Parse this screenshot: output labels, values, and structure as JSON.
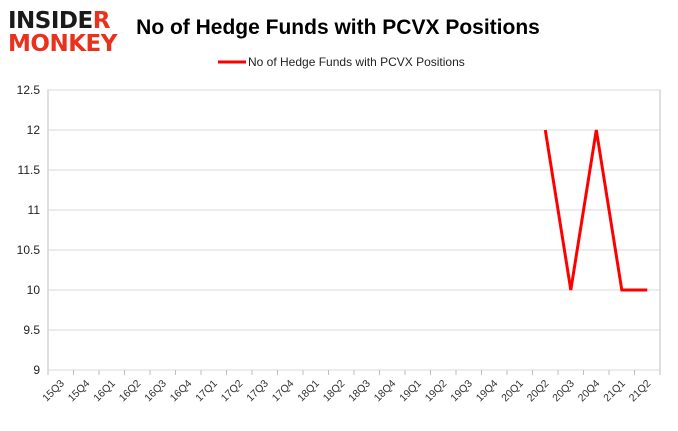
{
  "brand": {
    "line1_prefix": "INSIDE",
    "line1_accent": "R",
    "line2": "MONKEY",
    "color_dark": "#1a1a1a",
    "color_accent": "#e8321e"
  },
  "chart_data": {
    "type": "line",
    "title": "No of Hedge Funds with PCVX Positions",
    "xlabel": "",
    "ylabel": "",
    "categories": [
      "15Q3",
      "15Q4",
      "16Q1",
      "16Q2",
      "16Q3",
      "16Q4",
      "17Q1",
      "17Q2",
      "17Q3",
      "17Q4",
      "18Q1",
      "18Q2",
      "18Q3",
      "18Q4",
      "19Q1",
      "19Q2",
      "19Q3",
      "19Q4",
      "20Q1",
      "20Q2",
      "20Q3",
      "20Q4",
      "21Q1",
      "21Q2"
    ],
    "series": [
      {
        "name": "No of Hedge Funds with PCVX Positions",
        "color": "#ff0000",
        "values": [
          null,
          null,
          null,
          null,
          null,
          null,
          null,
          null,
          null,
          null,
          null,
          null,
          null,
          null,
          null,
          null,
          null,
          null,
          null,
          12,
          10,
          12,
          10,
          10
        ]
      }
    ],
    "ylim": [
      9,
      12.5
    ],
    "yticks": [
      "9",
      "9.5",
      "10",
      "10.5",
      "11",
      "11.5",
      "12",
      "12.5"
    ],
    "grid": true,
    "legend_position": "top-center",
    "grid_color": "#d9d9d9"
  }
}
